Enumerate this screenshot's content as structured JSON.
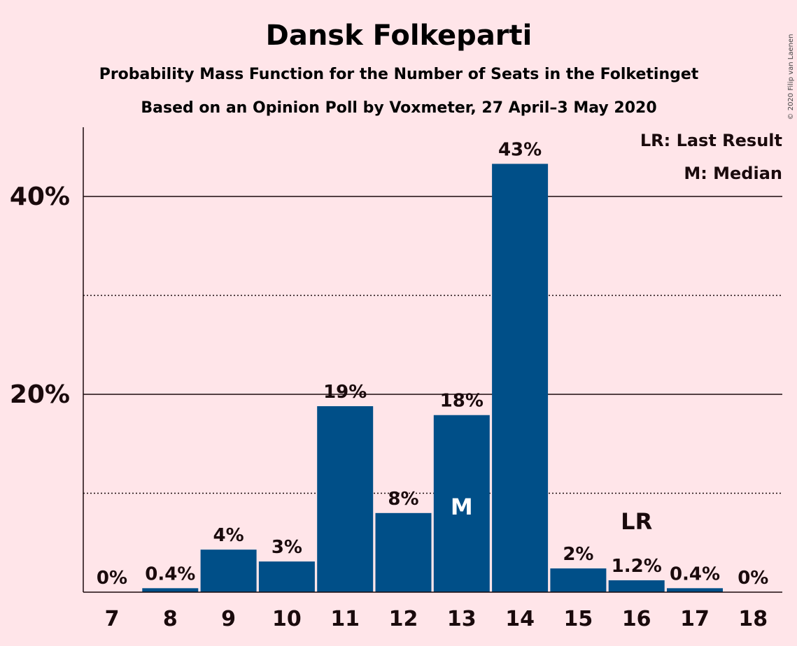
{
  "chart_data": {
    "type": "bar",
    "title": "Dansk Folkeparti",
    "subtitle": "Probability Mass Function for the Number of Seats in the Folketinget",
    "subtitle2": "Based on an Opinion Poll by Voxmeter, 27 April–3 May 2020",
    "copyright": "© 2020 Filip van Laenen",
    "categories": [
      "7",
      "8",
      "9",
      "10",
      "11",
      "12",
      "13",
      "14",
      "15",
      "16",
      "17",
      "18"
    ],
    "values": [
      0,
      0.4,
      4.3,
      3.1,
      18.8,
      8.0,
      17.9,
      43.3,
      2.4,
      1.2,
      0.4,
      0
    ],
    "value_labels": [
      "0%",
      "0.4%",
      "4%",
      "3%",
      "19%",
      "8%",
      "18%",
      "43%",
      "2%",
      "1.2%",
      "0.4%",
      "0%"
    ],
    "ylim": [
      0,
      47
    ],
    "y_ticks": [
      {
        "value": 20,
        "label": "20%"
      },
      {
        "value": 40,
        "label": "40%"
      }
    ],
    "gridlines_solid": [
      20,
      40
    ],
    "gridlines_dotted": [
      10,
      30
    ],
    "median": {
      "category": "13",
      "label": "M"
    },
    "last_result": {
      "category": "16",
      "label": "LR"
    },
    "legend": [
      "LR: Last Result",
      "M: Median"
    ],
    "legend_position": "top-right",
    "colors": {
      "bar": "#004F88",
      "background": "#FFE5E9",
      "text": "#1a0a0c",
      "median_label": "#FFFFFF"
    }
  }
}
